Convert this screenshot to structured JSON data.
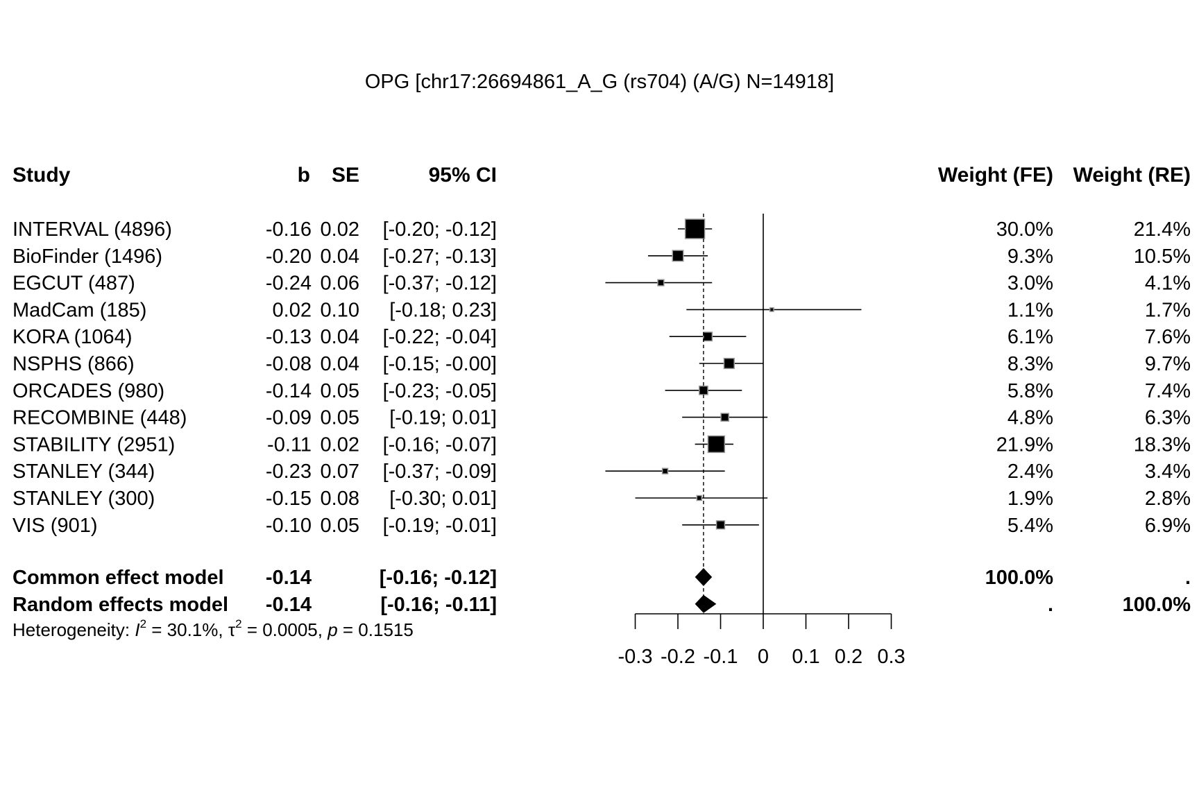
{
  "chart_data": {
    "type": "forest",
    "title": "OPG [chr17:26694861_A_G (rs704) (A/G) N=14918]",
    "columns": {
      "study": "Study",
      "b": "b",
      "se": "SE",
      "ci": "95% CI",
      "weight_fe": "Weight (FE)",
      "weight_re": "Weight (RE)"
    },
    "xlim": [
      -0.3,
      0.3
    ],
    "xticks": [
      -0.3,
      -0.2,
      -0.1,
      0,
      0.1,
      0.2,
      0.3
    ],
    "xtick_labels": [
      "-0.3",
      "-0.2",
      "-0.1",
      "0",
      "0.1",
      "0.2",
      "0.3"
    ],
    "summary_line": -0.14,
    "studies": [
      {
        "label": "INTERVAL (4896)",
        "b_text": "-0.16",
        "se_text": "0.02",
        "ci_text": "[-0.20; -0.12]",
        "wfe_text": "30.0%",
        "wre_text": "21.4%",
        "b": -0.16,
        "lower": -0.2,
        "upper": -0.12,
        "weight_fe": 30.0
      },
      {
        "label": "BioFinder (1496)",
        "b_text": "-0.20",
        "se_text": "0.04",
        "ci_text": "[-0.27; -0.13]",
        "wfe_text": "9.3%",
        "wre_text": "10.5%",
        "b": -0.2,
        "lower": -0.27,
        "upper": -0.13,
        "weight_fe": 9.3
      },
      {
        "label": "EGCUT (487)",
        "b_text": "-0.24",
        "se_text": "0.06",
        "ci_text": "[-0.37; -0.12]",
        "wfe_text": "3.0%",
        "wre_text": "4.1%",
        "b": -0.24,
        "lower": -0.37,
        "upper": -0.12,
        "weight_fe": 3.0
      },
      {
        "label": "MadCam (185)",
        "b_text": "0.02",
        "se_text": "0.10",
        "ci_text": "[-0.18;  0.23]",
        "wfe_text": "1.1%",
        "wre_text": "1.7%",
        "b": 0.02,
        "lower": -0.18,
        "upper": 0.23,
        "weight_fe": 1.1
      },
      {
        "label": "KORA (1064)",
        "b_text": "-0.13",
        "se_text": "0.04",
        "ci_text": "[-0.22; -0.04]",
        "wfe_text": "6.1%",
        "wre_text": "7.6%",
        "b": -0.13,
        "lower": -0.22,
        "upper": -0.04,
        "weight_fe": 6.1
      },
      {
        "label": "NSPHS (866)",
        "b_text": "-0.08",
        "se_text": "0.04",
        "ci_text": "[-0.15; -0.00]",
        "wfe_text": "8.3%",
        "wre_text": "9.7%",
        "b": -0.08,
        "lower": -0.15,
        "upper": -0.0,
        "weight_fe": 8.3
      },
      {
        "label": "ORCADES (980)",
        "b_text": "-0.14",
        "se_text": "0.05",
        "ci_text": "[-0.23; -0.05]",
        "wfe_text": "5.8%",
        "wre_text": "7.4%",
        "b": -0.14,
        "lower": -0.23,
        "upper": -0.05,
        "weight_fe": 5.8
      },
      {
        "label": "RECOMBINE (448)",
        "b_text": "-0.09",
        "se_text": "0.05",
        "ci_text": "[-0.19;  0.01]",
        "wfe_text": "4.8%",
        "wre_text": "6.3%",
        "b": -0.09,
        "lower": -0.19,
        "upper": 0.01,
        "weight_fe": 4.8
      },
      {
        "label": "STABILITY (2951)",
        "b_text": "-0.11",
        "se_text": "0.02",
        "ci_text": "[-0.16; -0.07]",
        "wfe_text": "21.9%",
        "wre_text": "18.3%",
        "b": -0.11,
        "lower": -0.16,
        "upper": -0.07,
        "weight_fe": 21.9
      },
      {
        "label": "STANLEY (344)",
        "b_text": "-0.23",
        "se_text": "0.07",
        "ci_text": "[-0.37; -0.09]",
        "wfe_text": "2.4%",
        "wre_text": "3.4%",
        "b": -0.23,
        "lower": -0.37,
        "upper": -0.09,
        "weight_fe": 2.4
      },
      {
        "label": "STANLEY (300)",
        "b_text": "-0.15",
        "se_text": "0.08",
        "ci_text": "[-0.30;  0.01]",
        "wfe_text": "1.9%",
        "wre_text": "2.8%",
        "b": -0.15,
        "lower": -0.3,
        "upper": 0.01,
        "weight_fe": 1.9
      },
      {
        "label": "VIS (901)",
        "b_text": "-0.10",
        "se_text": "0.05",
        "ci_text": "[-0.19; -0.01]",
        "wfe_text": "5.4%",
        "wre_text": "6.9%",
        "b": -0.1,
        "lower": -0.19,
        "upper": -0.01,
        "weight_fe": 5.4
      }
    ],
    "pooled": [
      {
        "label": "Common effect model",
        "b_text": "-0.14",
        "ci_text": "[-0.16; -0.12]",
        "wfe_text": "100.0%",
        "wre_text": ".",
        "b": -0.14,
        "lower": -0.16,
        "upper": -0.12
      },
      {
        "label": "Random effects model",
        "b_text": "-0.14",
        "ci_text": "[-0.16; -0.11]",
        "wfe_text": ".",
        "wre_text": "100.0%",
        "b": -0.14,
        "lower": -0.16,
        "upper": -0.11
      }
    ],
    "heterogeneity": {
      "prefix": "Heterogeneity: ",
      "i2_symbol": "I",
      "i2_value": " = 30.1%, ",
      "tau2_symbol": "τ",
      "tau2_value": " = 0.0005, ",
      "p_symbol": "p",
      "p_value": " = 0.1515"
    }
  }
}
